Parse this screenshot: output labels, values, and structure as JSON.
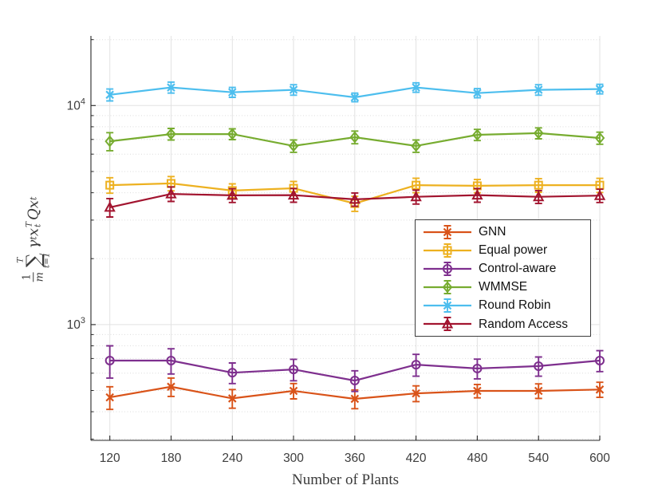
{
  "figure": {
    "background": "#ffffff"
  },
  "axes": {
    "spine_color": "#262626",
    "tick_label_color": "#3d3d3d",
    "grid_major_color": "#e2e2e2",
    "grid_minor_color": "#dcdcdc"
  },
  "ylabel": {
    "num": "1",
    "den": "m",
    "sum_symbol": "∑",
    "sum_sup": "T",
    "sum_sub": "t=1",
    "gamma": "γ",
    "gamma_sup": "t",
    "x1": "x",
    "x1_sup": "T",
    "x1_sub": "t",
    "q": "Q",
    "x2": "x",
    "x2_sub": "t"
  },
  "chart_data": {
    "type": "line",
    "title": "",
    "xlabel": "Number of Plants",
    "ylabel": "(1/m) sum_{t=1}^{T} gamma^t x_t^T Q x_t",
    "yscale": "log",
    "grid": true,
    "xlim": [
      101.5,
      600
    ],
    "ylim": [
      296,
      20800
    ],
    "x": [
      120,
      180,
      240,
      300,
      360,
      420,
      480,
      540,
      600
    ],
    "xticks": [
      120,
      180,
      240,
      300,
      360,
      420,
      480,
      540,
      600
    ],
    "yticks": [
      {
        "value": 1000,
        "base": "10",
        "exp": "3"
      },
      {
        "value": 10000,
        "base": "10",
        "exp": "4"
      }
    ],
    "legend": {
      "position": "inside-right"
    },
    "series": [
      {
        "name": "GNN",
        "color": "#D95319",
        "marker": "x",
        "values": [
          465,
          520,
          460,
          498,
          458,
          485,
          498,
          498,
          505
        ],
        "err": [
          55,
          50,
          45,
          40,
          45,
          40,
          35,
          38,
          40
        ]
      },
      {
        "name": "Equal power",
        "color": "#EDB120",
        "marker": "square",
        "values": [
          4330,
          4410,
          4090,
          4190,
          3570,
          4330,
          4300,
          4330,
          4330
        ],
        "err": [
          350,
          330,
          300,
          310,
          280,
          330,
          300,
          310,
          320
        ]
      },
      {
        "name": "Control-aware",
        "color": "#7E2F8E",
        "marker": "circle",
        "values": [
          685,
          685,
          603,
          624,
          555,
          656,
          630,
          646,
          685
        ],
        "err": [
          115,
          90,
          65,
          70,
          60,
          75,
          65,
          65,
          75
        ]
      },
      {
        "name": "WMMSE",
        "color": "#77AC30",
        "marker": "diamond",
        "values": [
          6870,
          7410,
          7410,
          6540,
          7170,
          6540,
          7350,
          7480,
          7110
        ],
        "err": [
          650,
          450,
          420,
          420,
          480,
          420,
          430,
          430,
          450
        ]
      },
      {
        "name": "Round Robin",
        "color": "#4DBEEE",
        "marker": "x",
        "values": [
          11200,
          12100,
          11500,
          11800,
          10900,
          12100,
          11400,
          11800,
          11900
        ],
        "err": [
          700,
          700,
          600,
          650,
          500,
          600,
          550,
          650,
          600
        ]
      },
      {
        "name": "Random Access",
        "color": "#A2142F",
        "marker": "triangle",
        "values": [
          3430,
          3950,
          3890,
          3900,
          3730,
          3830,
          3900,
          3830,
          3880
        ],
        "err": [
          330,
          300,
          280,
          280,
          260,
          280,
          280,
          260,
          270
        ]
      }
    ]
  }
}
